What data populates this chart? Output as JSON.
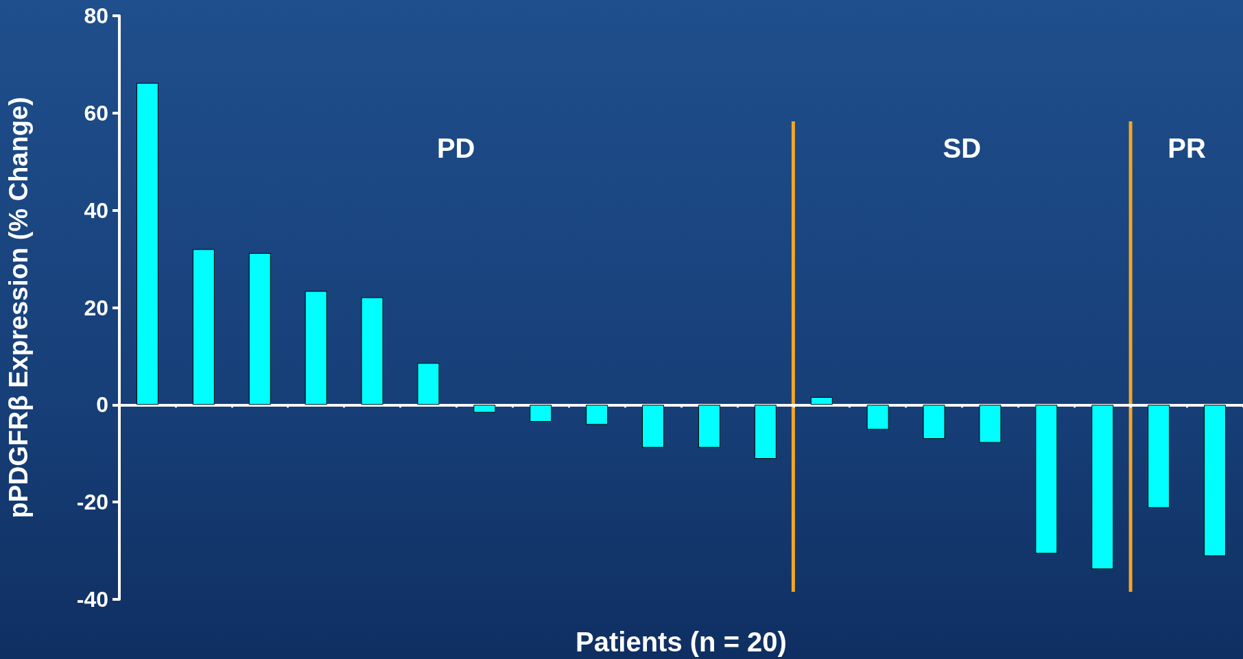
{
  "chart_data": {
    "type": "bar",
    "xlabel": "Patients (n = 20)",
    "ylabel": "pPDGFRβ Expression (% Change)",
    "categories": [
      null,
      null,
      null,
      null,
      null,
      null,
      null,
      null,
      null,
      null,
      null,
      null,
      null,
      null,
      null,
      null,
      null,
      null,
      null,
      null
    ],
    "values": [
      66.2,
      32,
      31.2,
      23.4,
      22.1,
      8.6,
      -1.6,
      -3.5,
      -4.1,
      -8.8,
      -8.8,
      -11.1,
      1.6,
      -5.1,
      -7,
      -7.8,
      -30.6,
      -33.8,
      -21.2,
      -31.1
    ],
    "color": "#00ffff",
    "ylim": [
      -40,
      80
    ],
    "yticks": [
      -40,
      -20,
      0,
      20,
      40,
      60,
      80
    ],
    "grid": false,
    "annotations": [
      "PD",
      "SD",
      "PR"
    ]
  }
}
